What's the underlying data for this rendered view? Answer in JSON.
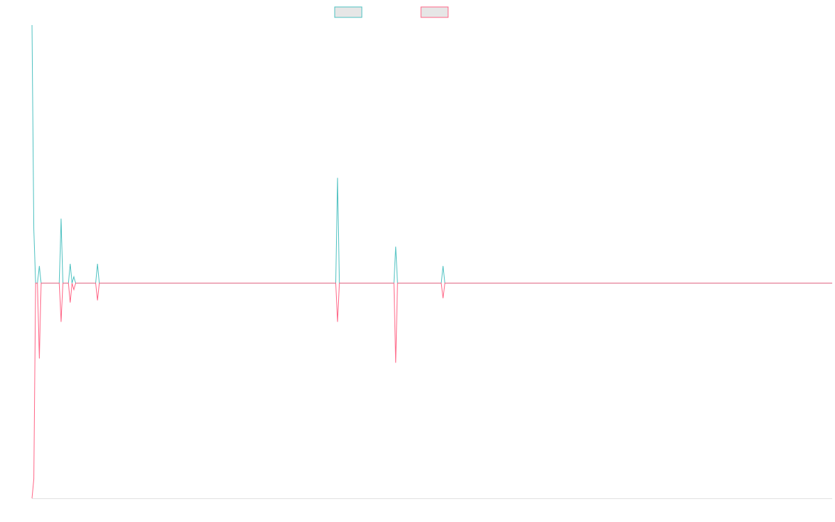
{
  "chart_data": {
    "type": "line",
    "title": "",
    "xlabel": "",
    "ylabel": "",
    "grid": false,
    "legend": "top-center",
    "legend_entries": [
      {
        "color": "#4bc0c0",
        "fill": "#e6e6e6"
      },
      {
        "color": "#ff6384",
        "fill": "#e6e6e6"
      }
    ],
    "xlim": [
      0,
      440
    ],
    "ylim": [
      -100,
      120
    ],
    "x": [
      0,
      1,
      2,
      3,
      4,
      5,
      8,
      15,
      16,
      17,
      20,
      21,
      22,
      23,
      24,
      25,
      26,
      27,
      35,
      36,
      37,
      167,
      168,
      169,
      199,
      200,
      201,
      225,
      226,
      227,
      440
    ],
    "series": [
      {
        "color": "#4bc0c0",
        "values": [
          120,
          25,
          0,
          0,
          8,
          0,
          0,
          0,
          30,
          0,
          0,
          9,
          0,
          3,
          0,
          0,
          0,
          0,
          0,
          9,
          0,
          0,
          49,
          0,
          0,
          17,
          0,
          0,
          8,
          0,
          0
        ]
      },
      {
        "color": "#ff6384",
        "values": [
          -100,
          -91,
          0,
          0,
          -35,
          0,
          0,
          0,
          -18,
          0,
          0,
          -9,
          0,
          -3,
          0,
          0,
          0,
          0,
          0,
          -8,
          0,
          0,
          -18,
          0,
          0,
          -37,
          0,
          0,
          -7,
          0,
          0
        ]
      }
    ]
  }
}
